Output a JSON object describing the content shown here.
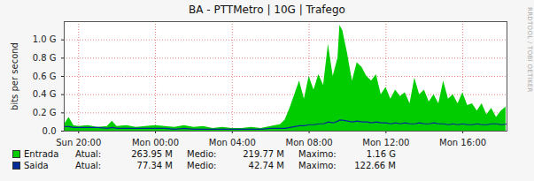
{
  "chart_data": {
    "type": "area",
    "title": "BA - PTTMetro | 10G | Trafego",
    "y_label": "bits per second",
    "annotations": [
      "RRDTOOL / TOBI OETIKER"
    ],
    "grid": true,
    "xlim": [
      19.25,
      42.3
    ],
    "xticks": [
      {
        "value": 20,
        "label": "Sun 20:00"
      },
      {
        "value": 24,
        "label": "Mon 00:00"
      },
      {
        "value": 28,
        "label": "Mon 04:00"
      },
      {
        "value": 32,
        "label": "Mon 08:00"
      },
      {
        "value": 36,
        "label": "Mon 12:00"
      },
      {
        "value": 40,
        "label": "Mon 16:00"
      }
    ],
    "ylim": [
      0,
      1.2
    ],
    "yticks": [
      {
        "value": 0,
        "label": "0.0"
      },
      {
        "value": 0.2,
        "label": "0.2 G"
      },
      {
        "value": 0.4,
        "label": "0.4 G"
      },
      {
        "value": 0.6,
        "label": "0.6 G"
      },
      {
        "value": 0.8,
        "label": "0.8 G"
      },
      {
        "value": 1.0,
        "label": "1.0 G"
      }
    ],
    "x": [
      19.25,
      19.5,
      19.75,
      20,
      20.5,
      21,
      21.5,
      21.75,
      22,
      22.5,
      23,
      23.5,
      24,
      24.5,
      25,
      25.5,
      26,
      26.5,
      27,
      27.5,
      28,
      28.5,
      29,
      29.5,
      30,
      30.5,
      30.75,
      31,
      31.25,
      31.5,
      31.75,
      32,
      32.25,
      32.5,
      32.75,
      33,
      33.25,
      33.5,
      33.6,
      33.75,
      34,
      34.25,
      34.5,
      34.75,
      35,
      35.25,
      35.5,
      35.75,
      36,
      36.25,
      36.5,
      36.75,
      37,
      37.25,
      37.5,
      37.75,
      38,
      38.25,
      38.5,
      38.75,
      39,
      39.25,
      39.5,
      39.75,
      40,
      40.25,
      40.5,
      40.75,
      41,
      41.25,
      41.5,
      41.75,
      42,
      42.25
    ],
    "series": [
      {
        "name": "Entrada",
        "type": "area",
        "color": "#00cc00",
        "stats": [
          {
            "label": "Atual:",
            "text": "263.95 M"
          },
          {
            "label": "Medio:",
            "text": "219.77 M"
          },
          {
            "label": "Maximo:",
            "text": "1.16 G"
          }
        ],
        "values": [
          0.07,
          0.15,
          0.06,
          0.05,
          0.06,
          0.04,
          0.05,
          0.11,
          0.05,
          0.06,
          0.04,
          0.05,
          0.06,
          0.05,
          0.04,
          0.06,
          0.04,
          0.05,
          0.03,
          0.04,
          0.03,
          0.03,
          0.04,
          0.03,
          0.05,
          0.07,
          0.12,
          0.25,
          0.4,
          0.55,
          0.35,
          0.6,
          0.45,
          0.62,
          0.5,
          0.95,
          0.6,
          0.8,
          1.16,
          1.1,
          0.85,
          0.55,
          0.75,
          0.7,
          0.6,
          0.55,
          0.62,
          0.4,
          0.48,
          0.35,
          0.45,
          0.38,
          0.42,
          0.3,
          0.58,
          0.4,
          0.45,
          0.32,
          0.4,
          0.3,
          0.55,
          0.35,
          0.4,
          0.3,
          0.42,
          0.28,
          0.3,
          0.22,
          0.3,
          0.18,
          0.25,
          0.15,
          0.22,
          0.264
        ]
      },
      {
        "name": "Saida",
        "type": "line",
        "color": "#002a97",
        "stats": [
          {
            "label": "Atual:",
            "text": "77.34 M"
          },
          {
            "label": "Medio:",
            "text": "42.74 M"
          },
          {
            "label": "Maximo:",
            "text": "122.66 M"
          }
        ],
        "values": [
          0.05,
          0.05,
          0.04,
          0.04,
          0.04,
          0.04,
          0.03,
          0.04,
          0.03,
          0.03,
          0.03,
          0.03,
          0.03,
          0.03,
          0.02,
          0.03,
          0.02,
          0.02,
          0.02,
          0.02,
          0.02,
          0.02,
          0.02,
          0.02,
          0.03,
          0.03,
          0.03,
          0.04,
          0.05,
          0.06,
          0.06,
          0.07,
          0.07,
          0.08,
          0.08,
          0.1,
          0.09,
          0.11,
          0.12266,
          0.12,
          0.11,
          0.1,
          0.11,
          0.1,
          0.1,
          0.09,
          0.1,
          0.09,
          0.09,
          0.08,
          0.09,
          0.08,
          0.09,
          0.08,
          0.08,
          0.09,
          0.08,
          0.08,
          0.09,
          0.08,
          0.08,
          0.07,
          0.08,
          0.07,
          0.08,
          0.07,
          0.07,
          0.08,
          0.07,
          0.07,
          0.08,
          0.08,
          0.07,
          0.07734
        ]
      }
    ]
  }
}
